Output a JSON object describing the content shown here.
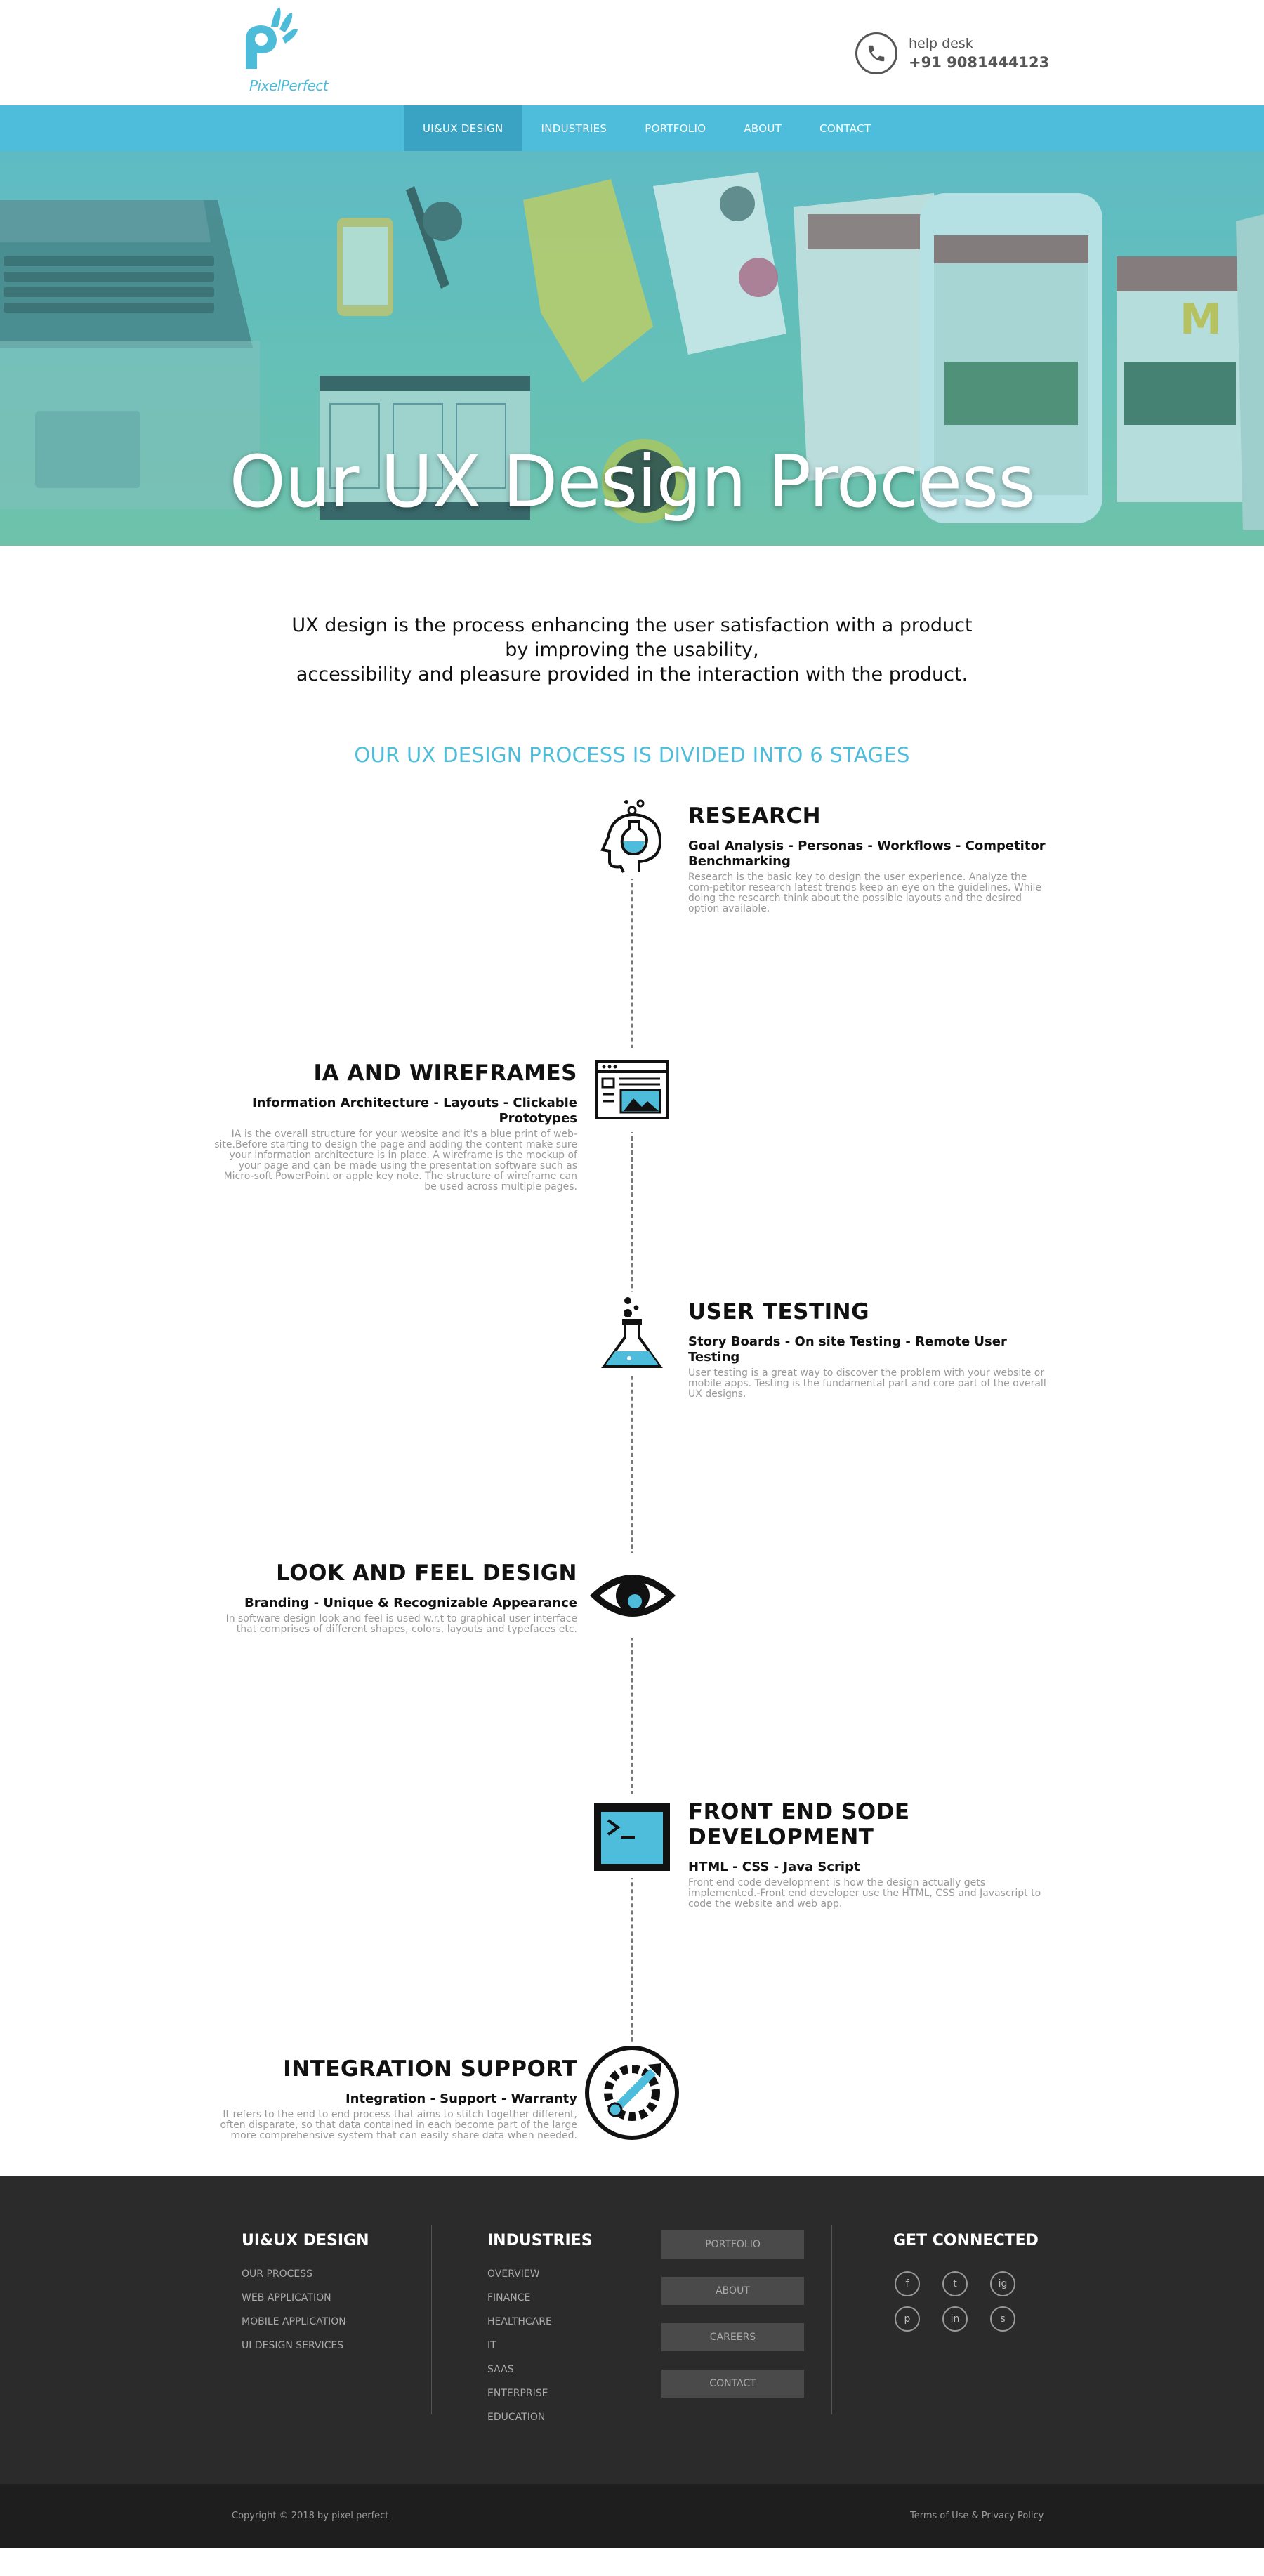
{
  "header": {
    "logo_text": "PixelPerfect",
    "help_label": "help desk",
    "help_number": "+91 9081444123"
  },
  "nav": {
    "items": [
      "UI&UX DESIGN",
      "INDUSTRIES",
      "PORTFOLIO",
      "ABOUT",
      "CONTACT"
    ],
    "active": "UI&UX DESIGN"
  },
  "hero": {
    "title": "Our UX Design Process"
  },
  "intro": {
    "line1": "UX design is the process enhancing the user satisfaction with a product",
    "line2": "by improving the usability,",
    "line3": "accessibility and pleasure provided in the interaction with the product."
  },
  "stages_heading": "OUR UX DESIGN PROCESS IS DIVIDED INTO 6 STAGES",
  "stages": [
    {
      "title": "RESEARCH",
      "subtitle": "Goal Analysis - Personas - Workflows - Competitor Benchmarking",
      "description": "Research is the basic key to design the user experience. Analyze the com-petitor research latest trends keep an eye on the guidelines. While doing the research think about the possible layouts and the desired option available.",
      "icon": "research-head-icon"
    },
    {
      "title": "IA AND WIREFRAMES",
      "subtitle": "Information Architecture - Layouts - Clickable Prototypes",
      "description": "IA is the overall structure for your website and it's a blue print of web-site.Before starting to design the page and adding the content make sure your information architecture is in place. A wireframe is the mockup of your page and can be made using the presentation software such as Micro-soft PowerPoint or apple key note. The structure of wireframe can be used across multiple pages.",
      "icon": "wireframe-icon"
    },
    {
      "title": "USER TESTING",
      "subtitle": "Story Boards - On site Testing - Remote User Testing",
      "description": "User testing is a great way to discover the problem with your website or mobile apps. Testing is the fundamental part and core part of the overall UX designs.",
      "icon": "flask-icon"
    },
    {
      "title": "LOOK AND FEEL DESIGN",
      "subtitle": "Branding - Unique & Recognizable Appearance",
      "description": "In software design look and feel is used w.r.t to graphical user interface that comprises of different shapes, colors, layouts and typefaces etc.",
      "icon": "eye-icon"
    },
    {
      "title": "FRONT END SODE DEVELOPMENT",
      "subtitle": "HTML - CSS - Java Script",
      "description": "Front end code development is how the design actually gets implemented.-Front end developer use the HTML, CSS and Javascript to code the website and web app.",
      "icon": "terminal-icon"
    },
    {
      "title": "INTEGRATION SUPPORT",
      "subtitle": "Integration - Support - Warranty",
      "description": "It refers to the end to end process that aims to stitch together different, often disparate, so that data contained in each become part of the large more comprehensive system that can easily share data when needed.",
      "icon": "integration-gear-icon"
    }
  ],
  "footer": {
    "col1": {
      "heading": "UI&UX DESIGN",
      "links": [
        "OUR PROCESS",
        "WEB APPLICATION",
        "MOBILE APPLICATION",
        "UI DESIGN SERVICES"
      ]
    },
    "col2": {
      "heading": "INDUSTRIES",
      "links": [
        "OVERVIEW",
        "FINANCE",
        "HEALTHCARE",
        "IT",
        "SAAS",
        "ENTERPRISE",
        "EDUCATION"
      ]
    },
    "buttons": [
      "PORTFOLIO",
      "ABOUT",
      "CAREERS",
      "CONTACT"
    ],
    "connect": {
      "heading": "GET CONNECTED",
      "socials": [
        "f",
        "t",
        "ig",
        "p",
        "in",
        "s"
      ]
    },
    "copyright": "Copyright © 2018 by pixel perfect",
    "terms": "Terms of Use & Privacy Policy"
  },
  "colors": {
    "accent": "#4ebcdb",
    "nav_active": "#3aa2c2",
    "footer_bg": "#2b2b2b",
    "bottom_bar_bg": "#1e1e1e"
  }
}
